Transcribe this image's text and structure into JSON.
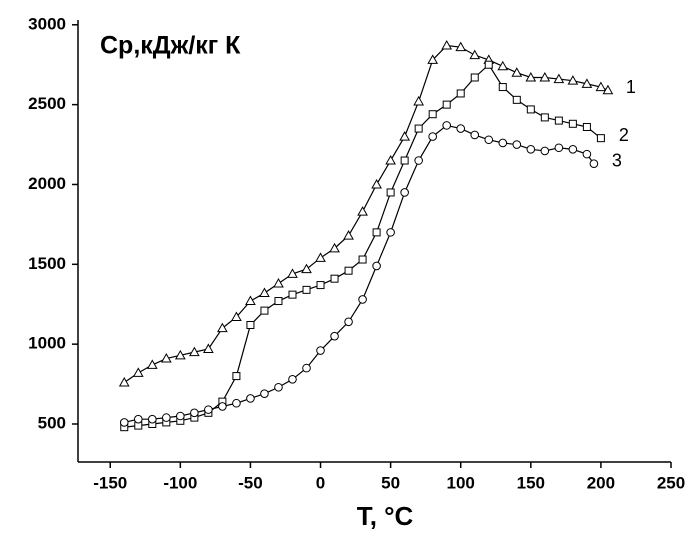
{
  "chart_data": {
    "type": "line",
    "title": "Cp,кДж/кг К",
    "x_label": "T, °C",
    "xlim": [
      -173,
      250
    ],
    "ylim": [
      262,
      3030
    ],
    "xticks": [
      -150,
      -100,
      -50,
      0,
      50,
      100,
      150,
      200,
      250
    ],
    "yticks": [
      500,
      1000,
      1500,
      2000,
      2500,
      3000
    ],
    "grid": false,
    "series": [
      {
        "name": "1",
        "color": "#000000",
        "marker": "triangle",
        "x": [
          -140,
          -130,
          -120,
          -110,
          -100,
          -90,
          -80,
          -70,
          -60,
          -50,
          -40,
          -30,
          -20,
          -10,
          0,
          10,
          20,
          30,
          40,
          50,
          60,
          70,
          80,
          90,
          100,
          110,
          120,
          130,
          140,
          150,
          160,
          170,
          180,
          190,
          200,
          205
        ],
        "values": [
          760,
          820,
          870,
          910,
          930,
          950,
          970,
          1100,
          1170,
          1270,
          1320,
          1380,
          1440,
          1470,
          1540,
          1600,
          1680,
          1830,
          2000,
          2150,
          2300,
          2520,
          2780,
          2870,
          2860,
          2810,
          2780,
          2740,
          2700,
          2670,
          2670,
          2660,
          2650,
          2630,
          2610,
          2590
        ]
      },
      {
        "name": "2",
        "color": "#000000",
        "marker": "square",
        "x": [
          -140,
          -130,
          -120,
          -110,
          -100,
          -90,
          -80,
          -70,
          -60,
          -50,
          -40,
          -30,
          -20,
          -10,
          0,
          10,
          20,
          30,
          40,
          50,
          60,
          70,
          80,
          90,
          100,
          110,
          120,
          130,
          140,
          150,
          160,
          170,
          180,
          190,
          200
        ],
        "values": [
          480,
          490,
          500,
          510,
          520,
          540,
          570,
          640,
          800,
          1120,
          1210,
          1270,
          1310,
          1340,
          1370,
          1410,
          1460,
          1530,
          1700,
          1950,
          2150,
          2350,
          2440,
          2500,
          2570,
          2670,
          2750,
          2610,
          2530,
          2470,
          2420,
          2400,
          2380,
          2360,
          2290
        ]
      },
      {
        "name": "3",
        "color": "#000000",
        "marker": "circle",
        "x": [
          -140,
          -130,
          -120,
          -110,
          -100,
          -90,
          -80,
          -70,
          -60,
          -50,
          -40,
          -30,
          -20,
          -10,
          0,
          10,
          20,
          30,
          40,
          50,
          60,
          70,
          80,
          90,
          100,
          110,
          120,
          130,
          140,
          150,
          160,
          170,
          180,
          190,
          195
        ],
        "values": [
          510,
          530,
          530,
          540,
          550,
          570,
          590,
          610,
          630,
          660,
          690,
          730,
          780,
          850,
          960,
          1050,
          1140,
          1280,
          1490,
          1700,
          1950,
          2150,
          2300,
          2370,
          2350,
          2310,
          2280,
          2260,
          2250,
          2220,
          2210,
          2230,
          2220,
          2190,
          2130
        ]
      }
    ]
  }
}
